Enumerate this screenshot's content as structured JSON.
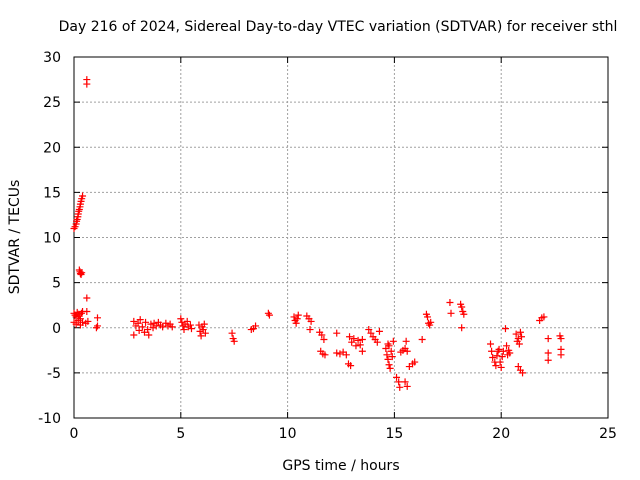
{
  "chart_data": {
    "type": "scatter",
    "title": "Day 216 of 2024, Sidereal Day-to-day VTEC variation (SDTVAR) for receiver sthl",
    "xlabel": "GPS time / hours",
    "ylabel": "SDTVAR / TECUs",
    "xlim": [
      0,
      25
    ],
    "ylim": [
      -10,
      30
    ],
    "xticks": [
      0,
      5,
      10,
      15,
      20,
      25
    ],
    "yticks": [
      -10,
      -5,
      0,
      5,
      10,
      15,
      20,
      25,
      30
    ],
    "xtick_labels": [
      "0",
      "5",
      "10",
      "15",
      "20",
      "25"
    ],
    "ytick_labels": [
      "-10",
      "-5",
      "0",
      "5",
      "10",
      "15",
      "20",
      "25",
      "30"
    ],
    "grid": true,
    "marker": "+",
    "color": "#ff0000",
    "series": [
      {
        "name": "SDTVAR",
        "points": [
          [
            0.6,
            27.5
          ],
          [
            0.6,
            27.0
          ],
          [
            0.0,
            11.0
          ],
          [
            0.05,
            11.2
          ],
          [
            0.1,
            11.5
          ],
          [
            0.12,
            11.8
          ],
          [
            0.15,
            12.0
          ],
          [
            0.18,
            12.3
          ],
          [
            0.2,
            12.6
          ],
          [
            0.22,
            12.9
          ],
          [
            0.25,
            13.1
          ],
          [
            0.28,
            13.4
          ],
          [
            0.3,
            13.7
          ],
          [
            0.33,
            14.0
          ],
          [
            0.36,
            14.3
          ],
          [
            0.4,
            14.6
          ],
          [
            0.25,
            6.4
          ],
          [
            0.28,
            6.2
          ],
          [
            0.3,
            6.0
          ],
          [
            0.33,
            5.9
          ],
          [
            0.36,
            6.1
          ],
          [
            0.6,
            3.3
          ],
          [
            0.0,
            1.6
          ],
          [
            0.05,
            1.4
          ],
          [
            0.1,
            1.2
          ],
          [
            0.15,
            1.7
          ],
          [
            0.2,
            1.5
          ],
          [
            0.25,
            1.3
          ],
          [
            0.3,
            1.0
          ],
          [
            0.35,
            1.6
          ],
          [
            0.4,
            1.8
          ],
          [
            0.0,
            0.6
          ],
          [
            0.1,
            0.4
          ],
          [
            0.2,
            0.8
          ],
          [
            0.3,
            0.3
          ],
          [
            0.4,
            0.6
          ],
          [
            0.55,
            0.5
          ],
          [
            0.6,
            1.8
          ],
          [
            0.65,
            0.7
          ],
          [
            1.1,
            1.1
          ],
          [
            1.1,
            0.2
          ],
          [
            1.05,
            0.0
          ],
          [
            2.8,
            0.7
          ],
          [
            2.8,
            -0.8
          ],
          [
            2.9,
            0.2
          ],
          [
            3.0,
            0.5
          ],
          [
            3.05,
            -0.3
          ],
          [
            3.1,
            0.9
          ],
          [
            3.2,
            0.1
          ],
          [
            3.3,
            -0.5
          ],
          [
            3.35,
            0.6
          ],
          [
            3.45,
            -0.2
          ],
          [
            3.5,
            -0.8
          ],
          [
            3.6,
            0.4
          ],
          [
            3.7,
            0.0
          ],
          [
            3.75,
            0.5
          ],
          [
            3.85,
            0.2
          ],
          [
            3.95,
            0.6
          ],
          [
            4.05,
            0.3
          ],
          [
            4.15,
            0.1
          ],
          [
            4.3,
            0.5
          ],
          [
            4.4,
            0.2
          ],
          [
            4.5,
            0.4
          ],
          [
            4.6,
            0.1
          ],
          [
            5.0,
            1.0
          ],
          [
            5.05,
            0.6
          ],
          [
            5.1,
            0.2
          ],
          [
            5.15,
            -0.2
          ],
          [
            5.2,
            0.4
          ],
          [
            5.3,
            0.7
          ],
          [
            5.35,
            0.1
          ],
          [
            5.45,
            0.3
          ],
          [
            5.5,
            -0.1
          ],
          [
            5.85,
            0.3
          ],
          [
            5.9,
            -0.4
          ],
          [
            5.95,
            -0.9
          ],
          [
            6.0,
            0.1
          ],
          [
            6.05,
            -0.2
          ],
          [
            6.1,
            0.4
          ],
          [
            6.15,
            -0.6
          ],
          [
            7.4,
            -0.6
          ],
          [
            7.45,
            -1.2
          ],
          [
            7.5,
            -1.5
          ],
          [
            8.3,
            -0.2
          ],
          [
            8.4,
            -0.1
          ],
          [
            8.5,
            0.2
          ],
          [
            9.1,
            1.6
          ],
          [
            9.15,
            1.4
          ],
          [
            10.3,
            1.2
          ],
          [
            10.35,
            0.8
          ],
          [
            10.4,
            0.5
          ],
          [
            10.45,
            1.0
          ],
          [
            10.5,
            1.4
          ],
          [
            10.9,
            1.3
          ],
          [
            11.0,
            1.0
          ],
          [
            11.1,
            0.7
          ],
          [
            11.05,
            -0.2
          ],
          [
            11.5,
            -0.5
          ],
          [
            11.6,
            -0.8
          ],
          [
            11.7,
            -1.3
          ],
          [
            11.55,
            -2.6
          ],
          [
            11.65,
            -2.9
          ],
          [
            11.75,
            -3.0
          ],
          [
            12.3,
            -0.6
          ],
          [
            12.3,
            -2.8
          ],
          [
            12.45,
            -2.9
          ],
          [
            12.6,
            -2.7
          ],
          [
            12.75,
            -3.0
          ],
          [
            12.85,
            -4.0
          ],
          [
            12.95,
            -4.2
          ],
          [
            12.9,
            -1.0
          ],
          [
            13.0,
            -1.6
          ],
          [
            13.1,
            -1.2
          ],
          [
            13.2,
            -2.0
          ],
          [
            13.3,
            -1.4
          ],
          [
            13.4,
            -1.9
          ],
          [
            13.5,
            -1.3
          ],
          [
            13.5,
            -2.6
          ],
          [
            13.8,
            -0.2
          ],
          [
            13.9,
            -0.6
          ],
          [
            14.0,
            -1.0
          ],
          [
            14.1,
            -1.3
          ],
          [
            14.2,
            -1.6
          ],
          [
            14.3,
            -0.4
          ],
          [
            14.6,
            -2.3
          ],
          [
            14.65,
            -3.0
          ],
          [
            14.7,
            -3.5
          ],
          [
            14.75,
            -4.1
          ],
          [
            14.8,
            -4.5
          ],
          [
            14.85,
            -2.6
          ],
          [
            14.9,
            -3.2
          ],
          [
            14.95,
            -1.5
          ],
          [
            14.7,
            -1.8
          ],
          [
            14.75,
            -2.0
          ],
          [
            15.1,
            -5.5
          ],
          [
            15.2,
            -6.0
          ],
          [
            15.25,
            -6.6
          ],
          [
            15.3,
            -2.7
          ],
          [
            15.4,
            -2.5
          ],
          [
            15.5,
            -2.3
          ],
          [
            15.55,
            -1.5
          ],
          [
            15.6,
            -2.6
          ],
          [
            15.5,
            -6.0
          ],
          [
            15.6,
            -6.5
          ],
          [
            15.7,
            -4.3
          ],
          [
            15.85,
            -4.0
          ],
          [
            15.95,
            -3.8
          ],
          [
            16.3,
            -1.3
          ],
          [
            16.5,
            1.5
          ],
          [
            16.55,
            1.2
          ],
          [
            16.6,
            0.5
          ],
          [
            16.65,
            0.3
          ],
          [
            16.7,
            0.6
          ],
          [
            17.6,
            2.8
          ],
          [
            17.65,
            1.6
          ],
          [
            18.1,
            2.6
          ],
          [
            18.15,
            2.3
          ],
          [
            18.2,
            1.8
          ],
          [
            18.25,
            1.5
          ],
          [
            18.15,
            0.0
          ],
          [
            19.5,
            -1.8
          ],
          [
            19.55,
            -2.6
          ],
          [
            19.6,
            -3.3
          ],
          [
            19.7,
            -3.8
          ],
          [
            19.75,
            -4.2
          ],
          [
            19.8,
            -3.1
          ],
          [
            19.85,
            -2.6
          ],
          [
            19.9,
            -2.4
          ],
          [
            19.95,
            -3.8
          ],
          [
            20.0,
            -4.4
          ],
          [
            20.05,
            -3.2
          ],
          [
            20.1,
            -2.6
          ],
          [
            20.2,
            -0.1
          ],
          [
            20.25,
            -2.0
          ],
          [
            20.3,
            -3.0
          ],
          [
            20.35,
            -2.5
          ],
          [
            20.4,
            -2.8
          ],
          [
            20.7,
            -0.7
          ],
          [
            20.75,
            -1.5
          ],
          [
            20.8,
            -1.2
          ],
          [
            20.85,
            -1.8
          ],
          [
            20.9,
            -0.5
          ],
          [
            20.95,
            -1.0
          ],
          [
            20.8,
            -4.3
          ],
          [
            20.9,
            -4.7
          ],
          [
            21.0,
            -5.0
          ],
          [
            21.8,
            0.8
          ],
          [
            21.9,
            1.1
          ],
          [
            22.0,
            1.2
          ],
          [
            22.2,
            -1.2
          ],
          [
            22.2,
            -2.8
          ],
          [
            22.2,
            -3.6
          ],
          [
            22.75,
            -0.9
          ],
          [
            22.8,
            -1.2
          ],
          [
            22.8,
            -2.4
          ],
          [
            22.8,
            -3.0
          ]
        ]
      }
    ]
  }
}
